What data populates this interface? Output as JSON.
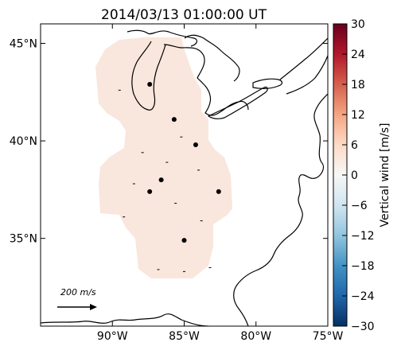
{
  "chart_data": {
    "type": "map",
    "title": "2014/03/13 01:00:00 UT",
    "xlim": [
      -95,
      -75
    ],
    "ylim": [
      30.5,
      46
    ],
    "x_ticks": [
      {
        "value": -90,
        "label": "90°W"
      },
      {
        "value": -85,
        "label": "85°W"
      },
      {
        "value": -80,
        "label": "80°W"
      },
      {
        "value": -75,
        "label": "75°W"
      }
    ],
    "y_ticks": [
      {
        "value": 35,
        "label": "35°N"
      },
      {
        "value": 40,
        "label": "40°N"
      },
      {
        "value": 45,
        "label": "45°N"
      }
    ],
    "colorbar": {
      "label": "Vertical wind [m/s]",
      "min": -30,
      "max": 30,
      "ticks": [
        {
          "value": 30,
          "label": "30"
        },
        {
          "value": 24,
          "label": "24"
        },
        {
          "value": 18,
          "label": "18"
        },
        {
          "value": 12,
          "label": "12"
        },
        {
          "value": 6,
          "label": "6"
        },
        {
          "value": 0,
          "label": "0"
        },
        {
          "value": -6,
          "label": "−6"
        },
        {
          "value": -12,
          "label": "−12"
        },
        {
          "value": -18,
          "label": "−18"
        },
        {
          "value": -24,
          "label": "−24"
        },
        {
          "value": -30,
          "label": "−30"
        }
      ],
      "colormap": [
        "#053061",
        "#2166ac",
        "#4393c3",
        "#92c5de",
        "#d1e5f0",
        "#f7f7f7",
        "#fddbc7",
        "#f4a582",
        "#d6604d",
        "#b2182b",
        "#67001f"
      ]
    },
    "field_value": 2,
    "field_color": "#f9e6dc",
    "stations": [
      {
        "lon": -87.4,
        "lat": 42.9
      },
      {
        "lon": -85.7,
        "lat": 41.1
      },
      {
        "lon": -84.2,
        "lat": 39.8
      },
      {
        "lon": -86.6,
        "lat": 38.0
      },
      {
        "lon": -87.4,
        "lat": 37.4
      },
      {
        "lon": -82.6,
        "lat": 37.4
      },
      {
        "lon": -85.0,
        "lat": 34.9
      }
    ],
    "scale_arrow": {
      "label": "200 m/s",
      "value": 200,
      "unit": "m/s"
    }
  }
}
